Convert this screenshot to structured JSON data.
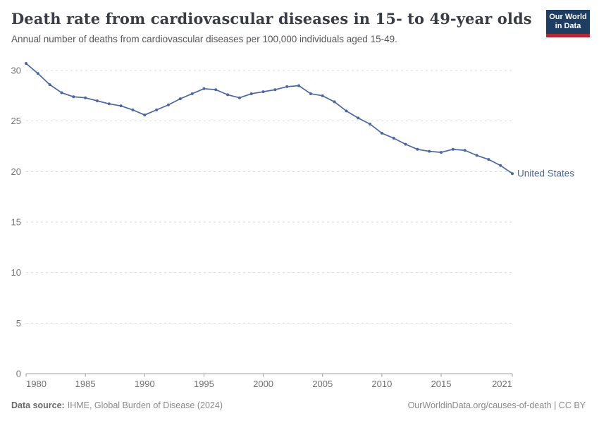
{
  "header": {
    "title": "Death rate from cardiovascular diseases in 15- to 49-year olds",
    "subtitle": "Annual number of deaths from cardiovascular diseases per 100,000 individuals aged 15-49."
  },
  "logo": {
    "line1": "Our World",
    "line2": "in Data",
    "bg_color": "#1d3d63",
    "accent_color": "#b02a35"
  },
  "chart_data": {
    "type": "line",
    "title": "Death rate from cardiovascular diseases in 15- to 49-year olds",
    "subtitle": "Annual number of deaths from cardiovascular diseases per 100,000 individuals aged 15-49.",
    "x": [
      1980,
      1981,
      1982,
      1983,
      1984,
      1985,
      1986,
      1987,
      1988,
      1989,
      1990,
      1991,
      1992,
      1993,
      1994,
      1995,
      1996,
      1997,
      1998,
      1999,
      2000,
      2001,
      2002,
      2003,
      2004,
      2005,
      2006,
      2007,
      2008,
      2009,
      2010,
      2011,
      2012,
      2013,
      2014,
      2015,
      2016,
      2017,
      2018,
      2019,
      2020,
      2021
    ],
    "series": [
      {
        "name": "United States",
        "color": "#4a67a3",
        "values": [
          30.7,
          29.7,
          28.6,
          27.8,
          27.4,
          27.3,
          27.0,
          26.7,
          26.5,
          26.1,
          25.6,
          26.1,
          26.6,
          27.2,
          27.7,
          28.2,
          28.1,
          27.6,
          27.3,
          27.7,
          27.9,
          28.1,
          28.4,
          28.5,
          27.7,
          27.5,
          26.9,
          26.0,
          25.3,
          24.7,
          23.8,
          23.3,
          22.7,
          22.2,
          22.0,
          21.9,
          22.2,
          22.1,
          21.6,
          21.2,
          20.6,
          19.8
        ]
      }
    ],
    "x_ticks": [
      1980,
      1985,
      1990,
      1995,
      2000,
      2005,
      2010,
      2015,
      2021
    ],
    "x_tick_labels": [
      "1980",
      "1985",
      "1990",
      "1995",
      "2000",
      "2005",
      "2010",
      "2015",
      "2021"
    ],
    "y_ticks": [
      0,
      5,
      10,
      15,
      20,
      25,
      30
    ],
    "ylim": [
      0,
      30
    ],
    "xlabel": "",
    "ylabel": "",
    "grid": "horizontal-dashed",
    "legend_position": "end-of-line-label"
  },
  "footer": {
    "datasource_label": "Data source:",
    "datasource_value": "IHME, Global Burden of Disease (2024)",
    "credit": "OurWorldinData.org/causes-of-death | CC BY"
  }
}
